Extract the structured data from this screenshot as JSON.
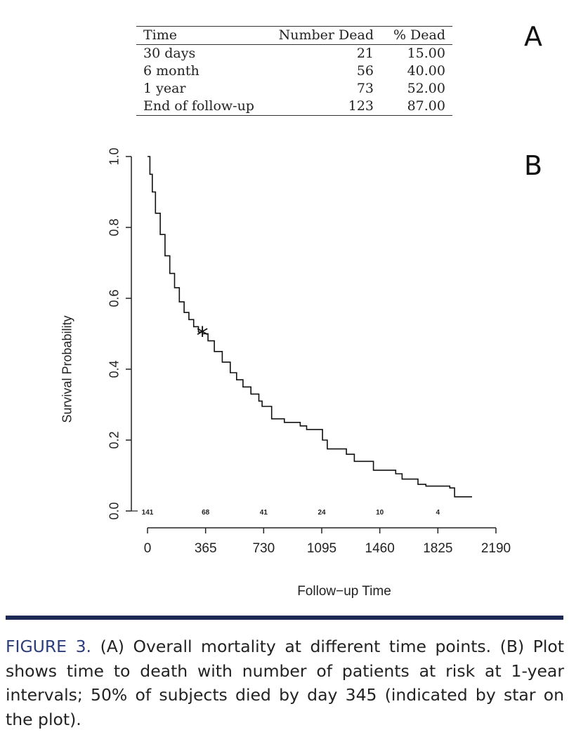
{
  "panel_labels": {
    "a": "A",
    "b": "B"
  },
  "table": {
    "headers": [
      "Time",
      "Number Dead",
      "% Dead"
    ],
    "rows": [
      [
        "30 days",
        "21",
        "15.00"
      ],
      [
        "6 month",
        "56",
        "40.00"
      ],
      [
        "1 year",
        "73",
        "52.00"
      ],
      [
        "End of follow-up",
        "123",
        "87.00"
      ]
    ]
  },
  "caption": {
    "label": "FIGURE 3.",
    "text": " (A) Overall mortality at different time points. (B) Plot shows time to death with number of patients at risk at 1-year intervals; 50% of subjects died by day 345 (indicated by star on the plot)."
  },
  "colors": {
    "divider": "#1c2a55",
    "caption_label": "#2d3d7c",
    "line": "#111111"
  },
  "chart_data": {
    "type": "line",
    "title": "",
    "xlabel": "Follow−up Time",
    "ylabel": "Survival Probability",
    "xlim": [
      0,
      2190
    ],
    "ylim": [
      0,
      1
    ],
    "x_ticks": [
      0,
      365,
      730,
      1095,
      1460,
      1825,
      2190
    ],
    "x_tick_labels": [
      "0",
      "365",
      "730",
      "1095",
      "1460",
      "1825",
      "2190"
    ],
    "y_ticks": [
      0,
      0.2,
      0.4,
      0.6,
      0.8,
      1.0
    ],
    "y_tick_labels": [
      "0.0",
      "0.2",
      "0.4",
      "0.6",
      "0.8",
      "1.0"
    ],
    "series": [
      {
        "name": "Survival",
        "x": [
          0,
          15,
          30,
          50,
          80,
          110,
          140,
          170,
          200,
          230,
          260,
          290,
          320,
          345,
          380,
          420,
          470,
          520,
          560,
          600,
          650,
          700,
          720,
          780,
          860,
          960,
          1000,
          1100,
          1130,
          1250,
          1300,
          1420,
          1560,
          1600,
          1700,
          1750,
          1900,
          1930,
          2040
        ],
        "y": [
          1.0,
          0.95,
          0.9,
          0.84,
          0.78,
          0.72,
          0.67,
          0.63,
          0.59,
          0.56,
          0.54,
          0.52,
          0.505,
          0.5,
          0.48,
          0.45,
          0.42,
          0.39,
          0.37,
          0.35,
          0.33,
          0.31,
          0.295,
          0.26,
          0.25,
          0.24,
          0.23,
          0.2,
          0.175,
          0.16,
          0.14,
          0.115,
          0.105,
          0.09,
          0.075,
          0.07,
          0.065,
          0.04,
          0.04
        ]
      }
    ],
    "annotations": [
      {
        "type": "star",
        "x": 345,
        "y": 0.5,
        "text": "*"
      }
    ],
    "at_risk": {
      "x": [
        0,
        365,
        730,
        1095,
        1460,
        1825
      ],
      "labels": [
        "141",
        "68",
        "41",
        "24",
        "10",
        "4"
      ]
    }
  }
}
